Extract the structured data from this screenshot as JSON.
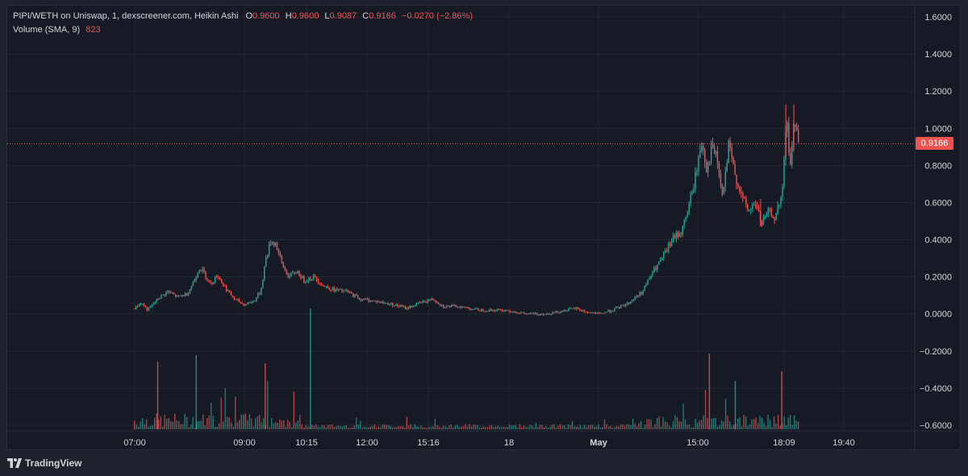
{
  "legend": {
    "title": "PIPI/WETH on Uniswap, 1, dexscreener.com, Heikin Ashi",
    "o_label": "O",
    "o_value": "0.9600",
    "h_label": "H",
    "h_value": "0.9600",
    "l_label": "L",
    "l_value": "0.9087",
    "c_label": "C",
    "c_value": "0.9166",
    "change": "−0.0270 (−2.86%)",
    "volume_label": "Volume (SMA, 9)",
    "volume_value": "823"
  },
  "last_price_badge": "0.9166",
  "brand": "TradingView",
  "colors": {
    "up": "#26a69a",
    "down": "#ef5350",
    "background": "#161a25",
    "grid": "#232733",
    "axis_text": "#d1d4dc",
    "last_price_line": "#ef5350"
  },
  "chart_data": {
    "type": "candlestick",
    "title": "PIPI/WETH on Uniswap, 1, dexscreener.com, Heikin Ashi",
    "y_ticks": [
      "1.6000",
      "1.4000",
      "1.2000",
      "1.0000",
      "0.8000",
      "0.6000",
      "0.4000",
      "0.2000",
      "0.0000",
      "−0.2000",
      "−0.4000",
      "−0.6000"
    ],
    "y_tick_values": [
      1.6,
      1.4,
      1.2,
      1.0,
      0.8,
      0.6,
      0.4,
      0.2,
      0.0,
      -0.2,
      -0.4,
      -0.6
    ],
    "ylim": [
      -0.6,
      1.6
    ],
    "x_ticks": [
      "07:00",
      "09:00",
      "10:15",
      "12:00",
      "15:16",
      "18",
      "May",
      "15:00",
      "18:09",
      "19:40"
    ],
    "x_tick_bold": [
      false,
      false,
      false,
      false,
      false,
      false,
      true,
      false,
      false,
      false
    ],
    "last_price": 0.9166,
    "grid": true,
    "price_series": [
      {
        "t": 0.0,
        "v": 0.03
      },
      {
        "t": 0.01,
        "v": 0.06
      },
      {
        "t": 0.02,
        "v": 0.02
      },
      {
        "t": 0.035,
        "v": 0.08
      },
      {
        "t": 0.05,
        "v": 0.12
      },
      {
        "t": 0.065,
        "v": 0.09
      },
      {
        "t": 0.08,
        "v": 0.11
      },
      {
        "t": 0.09,
        "v": 0.18
      },
      {
        "t": 0.098,
        "v": 0.25
      },
      {
        "t": 0.105,
        "v": 0.22
      },
      {
        "t": 0.115,
        "v": 0.16
      },
      {
        "t": 0.125,
        "v": 0.21
      },
      {
        "t": 0.135,
        "v": 0.15
      },
      {
        "t": 0.15,
        "v": 0.08
      },
      {
        "t": 0.165,
        "v": 0.05
      },
      {
        "t": 0.18,
        "v": 0.07
      },
      {
        "t": 0.19,
        "v": 0.12
      },
      {
        "t": 0.198,
        "v": 0.3
      },
      {
        "t": 0.205,
        "v": 0.39
      },
      {
        "t": 0.213,
        "v": 0.38
      },
      {
        "t": 0.222,
        "v": 0.27
      },
      {
        "t": 0.232,
        "v": 0.2
      },
      {
        "t": 0.245,
        "v": 0.23
      },
      {
        "t": 0.255,
        "v": 0.18
      },
      {
        "t": 0.27,
        "v": 0.2
      },
      {
        "t": 0.285,
        "v": 0.15
      },
      {
        "t": 0.3,
        "v": 0.13
      },
      {
        "t": 0.32,
        "v": 0.12
      },
      {
        "t": 0.34,
        "v": 0.08
      },
      {
        "t": 0.36,
        "v": 0.07
      },
      {
        "t": 0.39,
        "v": 0.05
      },
      {
        "t": 0.41,
        "v": 0.03
      },
      {
        "t": 0.43,
        "v": 0.06
      },
      {
        "t": 0.45,
        "v": 0.08
      },
      {
        "t": 0.465,
        "v": 0.04
      },
      {
        "t": 0.49,
        "v": 0.04
      },
      {
        "t": 0.52,
        "v": 0.02
      },
      {
        "t": 0.56,
        "v": 0.02
      },
      {
        "t": 0.59,
        "v": 0.0
      },
      {
        "t": 0.62,
        "v": 0.0
      },
      {
        "t": 0.65,
        "v": 0.02
      },
      {
        "t": 0.665,
        "v": 0.03
      },
      {
        "t": 0.68,
        "v": 0.01
      },
      {
        "t": 0.7,
        "v": 0.0
      },
      {
        "t": 0.72,
        "v": 0.02
      },
      {
        "t": 0.745,
        "v": 0.06
      },
      {
        "t": 0.765,
        "v": 0.12
      },
      {
        "t": 0.78,
        "v": 0.22
      },
      {
        "t": 0.795,
        "v": 0.3
      },
      {
        "t": 0.81,
        "v": 0.4
      },
      {
        "t": 0.825,
        "v": 0.45
      },
      {
        "t": 0.84,
        "v": 0.65
      },
      {
        "t": 0.855,
        "v": 0.93
      },
      {
        "t": 0.862,
        "v": 0.78
      },
      {
        "t": 0.87,
        "v": 0.9
      },
      {
        "t": 0.878,
        "v": 0.82
      },
      {
        "t": 0.886,
        "v": 0.62
      },
      {
        "t": 0.895,
        "v": 0.9
      },
      {
        "t": 0.905,
        "v": 0.75
      },
      {
        "t": 0.915,
        "v": 0.63
      },
      {
        "t": 0.925,
        "v": 0.55
      },
      {
        "t": 0.935,
        "v": 0.6
      },
      {
        "t": 0.945,
        "v": 0.48
      },
      {
        "t": 0.955,
        "v": 0.55
      },
      {
        "t": 0.965,
        "v": 0.52
      },
      {
        "t": 0.975,
        "v": 0.62
      },
      {
        "t": 0.982,
        "v": 1.05
      },
      {
        "t": 0.988,
        "v": 0.8
      },
      {
        "t": 0.994,
        "v": 1.05
      },
      {
        "t": 1.0,
        "v": 0.92
      }
    ]
  }
}
